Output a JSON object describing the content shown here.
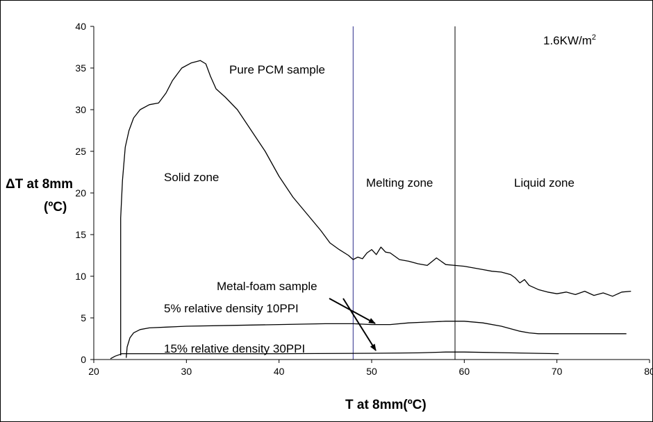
{
  "chart_data": {
    "type": "line",
    "title": "",
    "xlabel": "T at 8mm(ºC)",
    "ylabel_line1": "ΔT at 8mm",
    "ylabel_line2": "(ºC)",
    "xlim": [
      20,
      80
    ],
    "ylim": [
      0,
      40
    ],
    "x_ticks": [
      "20",
      "30",
      "40",
      "50",
      "60",
      "70",
      "80"
    ],
    "y_ticks": [
      "0",
      "5",
      "10",
      "15",
      "20",
      "25",
      "30",
      "35",
      "40"
    ],
    "grid": false,
    "legend": "none",
    "zone_boundaries": [
      {
        "x": 48,
        "color": "#2a2a8a"
      },
      {
        "x": 59,
        "color": "#000000"
      }
    ],
    "series": [
      {
        "color": "#000000",
        "x": [
          22.9,
          22.9,
          23.1,
          23.4,
          23.8,
          24.3,
          25.0,
          26.0,
          27.0,
          27.8,
          28.5,
          29.5,
          30.5,
          31.5,
          32.1,
          32.6,
          33.2,
          34.2,
          35.5,
          37.0,
          38.5,
          40.0,
          41.5,
          43.0,
          44.5,
          45.5,
          46.5,
          47.5,
          48.0,
          48.5,
          49.0,
          49.5,
          50.0,
          50.5,
          51.0,
          51.5,
          52.0,
          53.0,
          54.0,
          55.0,
          56.0,
          57.0,
          58.0,
          59.0,
          60.0,
          61.0,
          62.0,
          63.0,
          64.0,
          65.0,
          65.5,
          66.0,
          66.5,
          67.0,
          68.0,
          69.0,
          70.0,
          71.0,
          72.0,
          73.0,
          74.0,
          75.0,
          76.0,
          77.0,
          78.0
        ],
        "y": [
          0.5,
          17.0,
          21.5,
          25.5,
          27.5,
          29.0,
          30.0,
          30.6,
          30.8,
          32.0,
          33.5,
          35.0,
          35.6,
          35.9,
          35.5,
          34.0,
          32.5,
          31.5,
          30.0,
          27.5,
          25.0,
          22.0,
          19.5,
          17.5,
          15.5,
          14.0,
          13.2,
          12.5,
          12.0,
          12.3,
          12.1,
          12.8,
          13.2,
          12.6,
          13.5,
          12.9,
          12.8,
          12.0,
          11.8,
          11.5,
          11.3,
          12.2,
          11.4,
          11.3,
          11.2,
          11.0,
          10.8,
          10.6,
          10.5,
          10.2,
          9.8,
          9.2,
          9.6,
          8.9,
          8.4,
          8.1,
          7.9,
          8.1,
          7.8,
          8.2,
          7.7,
          8.0,
          7.6,
          8.1,
          8.2
        ]
      },
      {
        "color": "#000000",
        "x": [
          23.5,
          23.6,
          23.9,
          24.3,
          25.0,
          26.0,
          28.0,
          30.0,
          35.0,
          40.0,
          45.0,
          48.0,
          50.0,
          52.0,
          54.0,
          56.0,
          58.0,
          60.0,
          62.0,
          64.0,
          65.0,
          66.0,
          67.0,
          68.0,
          70.0,
          72.0,
          74.0,
          76.0,
          77.5
        ],
        "y": [
          0.2,
          1.5,
          2.6,
          3.2,
          3.6,
          3.8,
          3.9,
          4.0,
          4.1,
          4.2,
          4.3,
          4.3,
          4.2,
          4.2,
          4.4,
          4.5,
          4.6,
          4.6,
          4.4,
          4.0,
          3.7,
          3.4,
          3.2,
          3.1,
          3.1,
          3.1,
          3.1,
          3.1,
          3.1
        ]
      },
      {
        "color": "#000000",
        "x": [
          21.8,
          22.3,
          22.8,
          23.0,
          25.0,
          30.0,
          40.0,
          50.0,
          55.0,
          58.0,
          60.0,
          65.0,
          70.2
        ],
        "y": [
          0.1,
          0.4,
          0.6,
          0.7,
          0.7,
          0.7,
          0.7,
          0.75,
          0.8,
          0.9,
          0.9,
          0.8,
          0.7
        ]
      }
    ],
    "annotations": {
      "heat_flux": "1.6KW/m",
      "heat_flux_sup": "2",
      "pure_pcm": "Pure PCM sample",
      "solid_zone": "Solid zone",
      "melting_zone": "Melting zone",
      "liquid_zone": "Liquid zone",
      "metal_foam": "Metal-foam sample",
      "foam_5": "5% relative density 10PPI",
      "foam_15": "15% relative density 30PPI"
    }
  }
}
